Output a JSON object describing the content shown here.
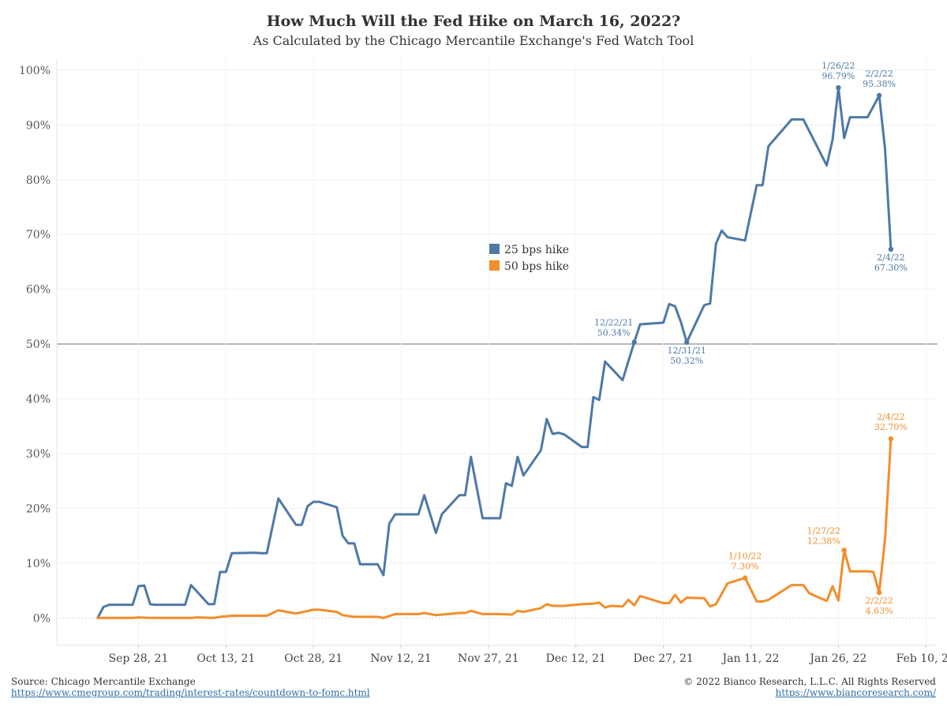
{
  "chart_data": {
    "type": "line",
    "title": "How Much Will the Fed Hike on March 16, 2022?",
    "subtitle": "As Calculated by the Chicago Mercantile Exchange's Fed Watch Tool",
    "xlabel": "",
    "ylabel": "",
    "x_range": [
      "2021-09-14",
      "2022-02-12"
    ],
    "ylim": [
      -5,
      102
    ],
    "x_ticks": [
      {
        "date": "2021-09-28",
        "label": "Sep 28, 21"
      },
      {
        "date": "2021-10-13",
        "label": "Oct 13, 21"
      },
      {
        "date": "2021-10-28",
        "label": "Oct 28, 21"
      },
      {
        "date": "2021-11-12",
        "label": "Nov 12, 21"
      },
      {
        "date": "2021-11-27",
        "label": "Nov 27, 21"
      },
      {
        "date": "2021-12-12",
        "label": "Dec 12, 21"
      },
      {
        "date": "2021-12-27",
        "label": "Dec 27, 21"
      },
      {
        "date": "2022-01-11",
        "label": "Jan 11, 22"
      },
      {
        "date": "2022-01-26",
        "label": "Jan 26, 22"
      },
      {
        "date": "2022-02-10",
        "label": "Feb 10, 22"
      }
    ],
    "y_ticks": [
      {
        "value": 0,
        "label": "0%"
      },
      {
        "value": 10,
        "label": "10%"
      },
      {
        "value": 20,
        "label": "20%"
      },
      {
        "value": 30,
        "label": "30%"
      },
      {
        "value": 40,
        "label": "40%"
      },
      {
        "value": 50,
        "label": "50%"
      },
      {
        "value": 60,
        "label": "60%"
      },
      {
        "value": 70,
        "label": "70%"
      },
      {
        "value": 80,
        "label": "80%"
      },
      {
        "value": 90,
        "label": "90%"
      },
      {
        "value": 100,
        "label": "100%"
      }
    ],
    "reference_line": 50,
    "grid": true,
    "legend_position": "center",
    "series": [
      {
        "name": "25 bps hike",
        "color": "#4e79a7",
        "points": [
          [
            "2021-09-21",
            0
          ],
          [
            "2021-09-22",
            2
          ],
          [
            "2021-09-23",
            2.4
          ],
          [
            "2021-09-27",
            2.4
          ],
          [
            "2021-09-28",
            5.8
          ],
          [
            "2021-09-29",
            5.9
          ],
          [
            "2021-09-30",
            2.5
          ],
          [
            "2021-10-01",
            2.4
          ],
          [
            "2021-10-06",
            2.4
          ],
          [
            "2021-10-07",
            6
          ],
          [
            "2021-10-10",
            2.5
          ],
          [
            "2021-10-11",
            2.5
          ],
          [
            "2021-10-12",
            8.4
          ],
          [
            "2021-10-13",
            8.4
          ],
          [
            "2021-10-14",
            11.8
          ],
          [
            "2021-10-18",
            11.9
          ],
          [
            "2021-10-19",
            11.8
          ],
          [
            "2021-10-20",
            11.8
          ],
          [
            "2021-10-22",
            21.8
          ],
          [
            "2021-10-25",
            17
          ],
          [
            "2021-10-26",
            17
          ],
          [
            "2021-10-27",
            20.4
          ],
          [
            "2021-10-28",
            21.2
          ],
          [
            "2021-10-29",
            21.2
          ],
          [
            "2021-11-01",
            20.2
          ],
          [
            "2021-11-02",
            15
          ],
          [
            "2021-11-03",
            13.6
          ],
          [
            "2021-11-04",
            13.6
          ],
          [
            "2021-11-05",
            9.8
          ],
          [
            "2021-11-08",
            9.8
          ],
          [
            "2021-11-09",
            7.8
          ],
          [
            "2021-11-10",
            17.2
          ],
          [
            "2021-11-11",
            18.9
          ],
          [
            "2021-11-15",
            18.9
          ],
          [
            "2021-11-16",
            22.4
          ],
          [
            "2021-11-18",
            15.5
          ],
          [
            "2021-11-19",
            18.9
          ],
          [
            "2021-11-22",
            22.4
          ],
          [
            "2021-11-23",
            22.4
          ],
          [
            "2021-11-24",
            29.4
          ],
          [
            "2021-11-26",
            18.2
          ],
          [
            "2021-11-29",
            18.2
          ],
          [
            "2021-11-30",
            24.6
          ],
          [
            "2021-12-01",
            24.1
          ],
          [
            "2021-12-02",
            29.4
          ],
          [
            "2021-12-03",
            26
          ],
          [
            "2021-12-06",
            30.6
          ],
          [
            "2021-12-07",
            36.3
          ],
          [
            "2021-12-08",
            33.6
          ],
          [
            "2021-12-09",
            33.8
          ],
          [
            "2021-12-10",
            33.5
          ],
          [
            "2021-12-13",
            31.2
          ],
          [
            "2021-12-14",
            31.2
          ],
          [
            "2021-12-15",
            40.3
          ],
          [
            "2021-12-16",
            39.8
          ],
          [
            "2021-12-17",
            46.8
          ],
          [
            "2021-12-20",
            43.4
          ],
          [
            "2021-12-22",
            50.34
          ],
          [
            "2021-12-23",
            53.6
          ],
          [
            "2021-12-27",
            53.9
          ],
          [
            "2021-12-28",
            57.3
          ],
          [
            "2021-12-29",
            56.9
          ],
          [
            "2021-12-30",
            54
          ],
          [
            "2021-12-31",
            50.32
          ],
          [
            "2022-01-03",
            57.1
          ],
          [
            "2022-01-04",
            57.4
          ],
          [
            "2022-01-05",
            68.3
          ],
          [
            "2022-01-06",
            70.7
          ],
          [
            "2022-01-07",
            69.5
          ],
          [
            "2022-01-10",
            68.9
          ],
          [
            "2022-01-12",
            79
          ],
          [
            "2022-01-13",
            79
          ],
          [
            "2022-01-14",
            86.1
          ],
          [
            "2022-01-18",
            91
          ],
          [
            "2022-01-20",
            91
          ],
          [
            "2022-01-24",
            82.6
          ],
          [
            "2022-01-25",
            87.3
          ],
          [
            "2022-01-26",
            96.79
          ],
          [
            "2022-01-27",
            87.6
          ],
          [
            "2022-01-28",
            91.4
          ],
          [
            "2022-01-31",
            91.4
          ],
          [
            "2022-02-02",
            95.38
          ],
          [
            "2022-02-03",
            85.6
          ],
          [
            "2022-02-04",
            67.3
          ]
        ]
      },
      {
        "name": "50 bps hike",
        "color": "#f28e2b",
        "points": [
          [
            "2021-09-21",
            0
          ],
          [
            "2021-09-27",
            0
          ],
          [
            "2021-09-28",
            0.1
          ],
          [
            "2021-09-30",
            0
          ],
          [
            "2021-10-07",
            0
          ],
          [
            "2021-10-08",
            0.1
          ],
          [
            "2021-10-11",
            0
          ],
          [
            "2021-10-12",
            0.2
          ],
          [
            "2021-10-14",
            0.4
          ],
          [
            "2021-10-20",
            0.4
          ],
          [
            "2021-10-22",
            1.4
          ],
          [
            "2021-10-25",
            0.8
          ],
          [
            "2021-10-28",
            1.5
          ],
          [
            "2021-10-29",
            1.5
          ],
          [
            "2021-11-01",
            1.1
          ],
          [
            "2021-11-02",
            0.5
          ],
          [
            "2021-11-04",
            0.2
          ],
          [
            "2021-11-08",
            0.2
          ],
          [
            "2021-11-09",
            0
          ],
          [
            "2021-11-11",
            0.7
          ],
          [
            "2021-11-15",
            0.7
          ],
          [
            "2021-11-16",
            0.9
          ],
          [
            "2021-11-18",
            0.5
          ],
          [
            "2021-11-22",
            0.9
          ],
          [
            "2021-11-23",
            0.9
          ],
          [
            "2021-11-24",
            1.3
          ],
          [
            "2021-11-26",
            0.7
          ],
          [
            "2021-11-29",
            0.7
          ],
          [
            "2021-12-01",
            0.6
          ],
          [
            "2021-12-02",
            1.3
          ],
          [
            "2021-12-03",
            1.1
          ],
          [
            "2021-12-06",
            1.8
          ],
          [
            "2021-12-07",
            2.5
          ],
          [
            "2021-12-08",
            2.2
          ],
          [
            "2021-12-10",
            2.2
          ],
          [
            "2021-12-13",
            2.5
          ],
          [
            "2021-12-15",
            2.6
          ],
          [
            "2021-12-16",
            2.8
          ],
          [
            "2021-12-17",
            1.9
          ],
          [
            "2021-12-18",
            2.2
          ],
          [
            "2021-12-20",
            2.1
          ],
          [
            "2021-12-21",
            3.3
          ],
          [
            "2021-12-22",
            2.3
          ],
          [
            "2021-12-23",
            4
          ],
          [
            "2021-12-27",
            2.7
          ],
          [
            "2021-12-28",
            2.7
          ],
          [
            "2021-12-29",
            4.2
          ],
          [
            "2021-12-30",
            2.8
          ],
          [
            "2021-12-31",
            3.7
          ],
          [
            "2022-01-03",
            3.6
          ],
          [
            "2022-01-04",
            2.1
          ],
          [
            "2022-01-05",
            2.5
          ],
          [
            "2022-01-07",
            6.3
          ],
          [
            "2022-01-10",
            7.3
          ],
          [
            "2022-01-11",
            5.2
          ],
          [
            "2022-01-12",
            3
          ],
          [
            "2022-01-13",
            3
          ],
          [
            "2022-01-14",
            3.3
          ],
          [
            "2022-01-18",
            6
          ],
          [
            "2022-01-20",
            6
          ],
          [
            "2022-01-21",
            4.5
          ],
          [
            "2022-01-24",
            3.1
          ],
          [
            "2022-01-25",
            5.8
          ],
          [
            "2022-01-26",
            3.2
          ],
          [
            "2022-01-27",
            12.38
          ],
          [
            "2022-01-28",
            8.5
          ],
          [
            "2022-01-31",
            8.5
          ],
          [
            "2022-02-01",
            8.4
          ],
          [
            "2022-02-02",
            4.63
          ],
          [
            "2022-02-03",
            14.4
          ],
          [
            "2022-02-04",
            32.7
          ]
        ]
      }
    ],
    "annotations": [
      {
        "series": 0,
        "date": "2022-01-26",
        "value": 96.79,
        "date_label": "1/26/22",
        "value_label": "96.79%",
        "placement": "above"
      },
      {
        "series": 0,
        "date": "2022-02-02",
        "value": 95.38,
        "date_label": "2/2/22",
        "value_label": "95.38%",
        "placement": "above"
      },
      {
        "series": 0,
        "date": "2022-02-04",
        "value": 67.3,
        "date_label": "2/4/22",
        "value_label": "67.30%",
        "placement": "below"
      },
      {
        "series": 0,
        "date": "2021-12-22",
        "value": 50.34,
        "date_label": "12/22/21",
        "value_label": "50.34%",
        "placement": "above-left"
      },
      {
        "series": 0,
        "date": "2021-12-31",
        "value": 50.32,
        "date_label": "12/31/21",
        "value_label": "50.32%",
        "placement": "below"
      },
      {
        "series": 1,
        "date": "2022-02-04",
        "value": 32.7,
        "date_label": "2/4/22",
        "value_label": "32.70%",
        "placement": "above"
      },
      {
        "series": 1,
        "date": "2022-01-10",
        "value": 7.3,
        "date_label": "1/10/22",
        "value_label": "7.30%",
        "placement": "above"
      },
      {
        "series": 1,
        "date": "2022-01-27",
        "value": 12.38,
        "date_label": "1/27/22",
        "value_label": "12.38%",
        "placement": "above-left"
      },
      {
        "series": 1,
        "date": "2022-02-02",
        "value": 4.63,
        "date_label": "2/2/22",
        "value_label": "4.63%",
        "placement": "below"
      }
    ]
  },
  "footer": {
    "source": "Source: Chicago Mercantile Exchange",
    "source_url": "https://www.cmegroup.com/trading/interest-rates/countdown-to-fomc.html",
    "copyright": "© 2022 Bianco Research, L.L.C. All Rights Reserved",
    "site_url": "https://www.biancoresearch.com/"
  }
}
